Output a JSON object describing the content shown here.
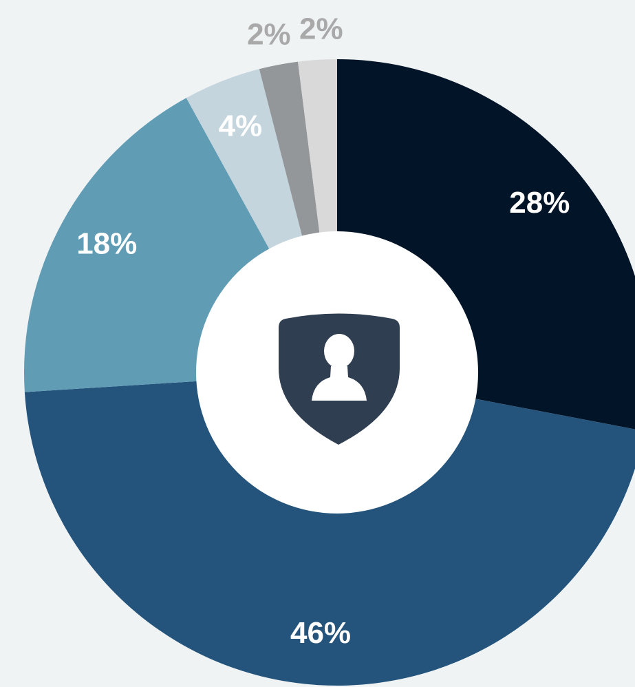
{
  "chart_data": {
    "type": "donut",
    "values": [
      28,
      46,
      18,
      4,
      2,
      2
    ],
    "value_labels": [
      "28%",
      "46%",
      "18%",
      "4%",
      "2%",
      "2%"
    ],
    "colors": [
      "#021427",
      "#24547c",
      "#619cb5",
      "#c4d5de",
      "#939799",
      "#d9d9d9"
    ]
  }
}
